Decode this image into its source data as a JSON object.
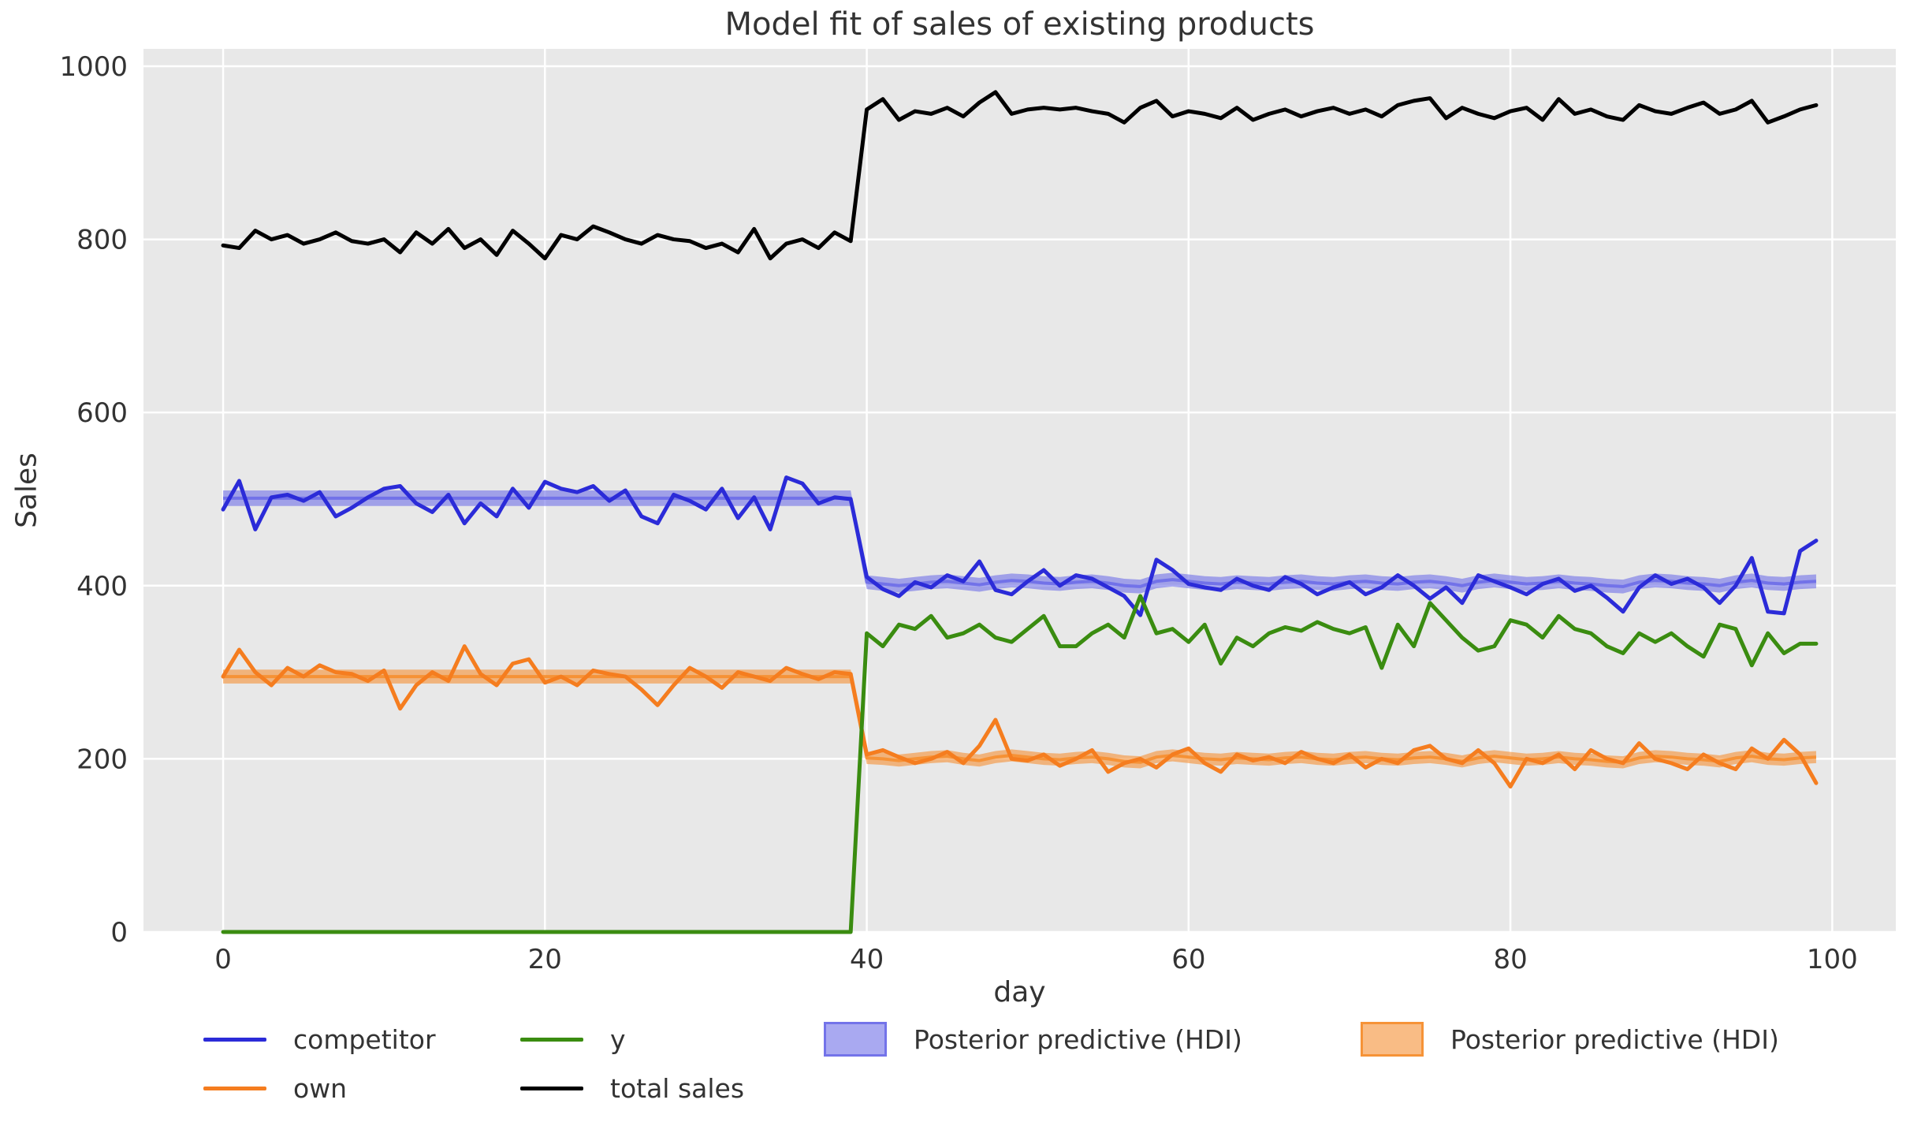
{
  "title": "Model fit of sales of existing products",
  "colors": {
    "figure_bg": "#ffffff",
    "plot_bg": "#e8e8e8",
    "grid": "#ffffff",
    "text": "#333333",
    "competitor": "#2b2bd8",
    "own": "#f57d1f",
    "y": "#3a8c10",
    "total_sales": "#000000",
    "hdi_blue": "#7070e8",
    "hdi_orange": "#f59033"
  },
  "legend": {
    "entries": [
      {
        "label": "competitor",
        "type": "line"
      },
      {
        "label": "own",
        "type": "line"
      },
      {
        "label": "y",
        "type": "line"
      },
      {
        "label": "total sales",
        "type": "line"
      },
      {
        "label": "Posterior predictive (HDI)",
        "type": "patch"
      },
      {
        "label": "Posterior predictive (HDI)",
        "type": "patch"
      }
    ]
  },
  "chart_data": {
    "type": "line",
    "title": "Model fit of sales of existing products",
    "xlabel": "day",
    "ylabel": "Sales",
    "xlim": [
      -4.95,
      103.95
    ],
    "ylim": [
      0,
      1020
    ],
    "x_ticks": [
      0,
      20,
      40,
      60,
      80,
      100
    ],
    "y_ticks": [
      0,
      200,
      400,
      600,
      800,
      1000
    ],
    "grid": true,
    "legend_position": "bottom",
    "x": [
      0,
      1,
      2,
      3,
      4,
      5,
      6,
      7,
      8,
      9,
      10,
      11,
      12,
      13,
      14,
      15,
      16,
      17,
      18,
      19,
      20,
      21,
      22,
      23,
      24,
      25,
      26,
      27,
      28,
      29,
      30,
      31,
      32,
      33,
      34,
      35,
      36,
      37,
      38,
      39,
      40,
      41,
      42,
      43,
      44,
      45,
      46,
      47,
      48,
      49,
      50,
      51,
      52,
      53,
      54,
      55,
      56,
      57,
      58,
      59,
      60,
      61,
      62,
      63,
      64,
      65,
      66,
      67,
      68,
      69,
      70,
      71,
      72,
      73,
      74,
      75,
      76,
      77,
      78,
      79,
      80,
      81,
      82,
      83,
      84,
      85,
      86,
      87,
      88,
      89,
      90,
      91,
      92,
      93,
      94,
      95,
      96,
      97,
      98,
      99
    ],
    "series": [
      {
        "name": "competitor",
        "color": "#2b2bd8",
        "values": [
          488,
          521,
          465,
          502,
          505,
          498,
          508,
          480,
          490,
          502,
          512,
          515,
          495,
          485,
          505,
          472,
          495,
          480,
          512,
          490,
          520,
          512,
          508,
          515,
          498,
          510,
          480,
          472,
          505,
          498,
          488,
          512,
          478,
          502,
          465,
          525,
          518,
          495,
          502,
          500,
          410,
          396,
          388,
          404,
          398,
          412,
          405,
          428,
          395,
          390,
          405,
          418,
          400,
          412,
          408,
          398,
          388,
          366,
          430,
          418,
          402,
          398,
          395,
          408,
          400,
          395,
          410,
          402,
          390,
          398,
          404,
          390,
          398,
          412,
          400,
          385,
          398,
          380,
          412,
          405,
          398,
          390,
          402,
          408,
          394,
          400,
          386,
          370,
          398,
          412,
          402,
          408,
          398,
          380,
          400,
          432,
          370,
          368,
          440,
          452
        ]
      },
      {
        "name": "own",
        "color": "#f57d1f",
        "values": [
          295,
          326,
          300,
          285,
          305,
          295,
          308,
          300,
          298,
          290,
          302,
          258,
          285,
          300,
          290,
          330,
          298,
          285,
          310,
          315,
          288,
          295,
          285,
          302,
          298,
          295,
          280,
          262,
          285,
          305,
          295,
          282,
          300,
          295,
          290,
          305,
          298,
          292,
          300,
          298,
          205,
          210,
          202,
          195,
          200,
          208,
          195,
          215,
          245,
          200,
          198,
          205,
          192,
          200,
          210,
          185,
          195,
          200,
          190,
          205,
          212,
          195,
          185,
          205,
          198,
          202,
          195,
          208,
          200,
          195,
          205,
          190,
          200,
          195,
          210,
          215,
          200,
          195,
          210,
          195,
          168,
          200,
          195,
          205,
          188,
          210,
          200,
          195,
          218,
          200,
          195,
          188,
          205,
          195,
          188,
          212,
          200,
          222,
          205,
          172
        ]
      },
      {
        "name": "y",
        "color": "#3a8c10",
        "values": [
          0,
          0,
          0,
          0,
          0,
          0,
          0,
          0,
          0,
          0,
          0,
          0,
          0,
          0,
          0,
          0,
          0,
          0,
          0,
          0,
          0,
          0,
          0,
          0,
          0,
          0,
          0,
          0,
          0,
          0,
          0,
          0,
          0,
          0,
          0,
          0,
          0,
          0,
          0,
          0,
          345,
          330,
          355,
          350,
          365,
          340,
          345,
          355,
          340,
          335,
          350,
          365,
          330,
          330,
          345,
          355,
          340,
          388,
          345,
          350,
          335,
          355,
          310,
          340,
          330,
          345,
          352,
          348,
          358,
          350,
          345,
          352,
          305,
          355,
          330,
          380,
          360,
          340,
          325,
          330,
          360,
          355,
          340,
          365,
          350,
          345,
          330,
          322,
          345,
          335,
          345,
          330,
          318,
          355,
          350,
          308,
          345,
          322,
          333,
          333
        ]
      },
      {
        "name": "total sales",
        "color": "#000000",
        "values": [
          793,
          790,
          810,
          800,
          805,
          795,
          800,
          808,
          798,
          795,
          800,
          785,
          808,
          795,
          812,
          790,
          800,
          782,
          810,
          795,
          778,
          805,
          800,
          815,
          808,
          800,
          795,
          805,
          800,
          798,
          790,
          795,
          785,
          812,
          778,
          795,
          800,
          790,
          808,
          798,
          950,
          962,
          938,
          948,
          945,
          952,
          942,
          958,
          970,
          945,
          950,
          952,
          950,
          952,
          948,
          945,
          935,
          952,
          960,
          942,
          948,
          945,
          940,
          952,
          938,
          945,
          950,
          942,
          948,
          952,
          945,
          950,
          942,
          955,
          960,
          963,
          940,
          952,
          945,
          940,
          948,
          952,
          938,
          962,
          945,
          950,
          942,
          938,
          955,
          948,
          945,
          952,
          958,
          945,
          950,
          960,
          935,
          942,
          950,
          955
        ]
      }
    ],
    "bands": [
      {
        "name": "Posterior predictive (HDI)",
        "color": "#7070e8",
        "lower": [
          492,
          492,
          492,
          492,
          492,
          492,
          492,
          492,
          492,
          492,
          492,
          492,
          492,
          492,
          492,
          492,
          492,
          492,
          492,
          492,
          492,
          492,
          492,
          492,
          492,
          492,
          492,
          492,
          492,
          492,
          492,
          492,
          492,
          492,
          492,
          492,
          492,
          492,
          492,
          492,
          396,
          394,
          392,
          394,
          396,
          397,
          395,
          393,
          396,
          398,
          397,
          395,
          394,
          396,
          397,
          395,
          392,
          391,
          397,
          399,
          397,
          395,
          394,
          396,
          395,
          394,
          396,
          397,
          395,
          394,
          396,
          397,
          395,
          394,
          396,
          397,
          395,
          392,
          396,
          398,
          396,
          394,
          395,
          397,
          395,
          394,
          392,
          391,
          396,
          398,
          397,
          395,
          394,
          392,
          396,
          398,
          395,
          394,
          396,
          397
        ],
        "upper": [
          510,
          510,
          510,
          510,
          510,
          510,
          510,
          510,
          510,
          510,
          510,
          510,
          510,
          510,
          510,
          510,
          510,
          510,
          510,
          510,
          510,
          510,
          510,
          510,
          510,
          510,
          510,
          510,
          510,
          510,
          510,
          510,
          510,
          510,
          510,
          510,
          510,
          510,
          510,
          510,
          412,
          410,
          408,
          410,
          412,
          413,
          411,
          409,
          412,
          414,
          413,
          411,
          410,
          412,
          413,
          411,
          408,
          407,
          413,
          415,
          413,
          411,
          410,
          412,
          411,
          410,
          412,
          413,
          411,
          410,
          412,
          413,
          411,
          410,
          412,
          413,
          411,
          408,
          412,
          414,
          412,
          410,
          411,
          413,
          411,
          410,
          408,
          407,
          412,
          414,
          413,
          411,
          410,
          408,
          412,
          414,
          411,
          410,
          412,
          413
        ],
        "mean": [
          501,
          501,
          501,
          501,
          501,
          501,
          501,
          501,
          501,
          501,
          501,
          501,
          501,
          501,
          501,
          501,
          501,
          501,
          501,
          501,
          501,
          501,
          501,
          501,
          501,
          501,
          501,
          501,
          501,
          501,
          501,
          501,
          501,
          501,
          501,
          501,
          501,
          501,
          501,
          501,
          404,
          402,
          400,
          402,
          404,
          405,
          403,
          401,
          404,
          406,
          405,
          403,
          402,
          404,
          405,
          403,
          400,
          399,
          405,
          407,
          405,
          403,
          402,
          404,
          403,
          402,
          404,
          405,
          403,
          402,
          404,
          405,
          403,
          402,
          404,
          405,
          403,
          400,
          404,
          406,
          404,
          402,
          403,
          405,
          403,
          402,
          400,
          399,
          404,
          406,
          405,
          403,
          402,
          400,
          404,
          406,
          403,
          402,
          404,
          405
        ]
      },
      {
        "name": "Posterior predictive (HDI)",
        "color": "#f59033",
        "lower": [
          287,
          287,
          287,
          287,
          287,
          287,
          287,
          287,
          287,
          287,
          287,
          287,
          287,
          287,
          287,
          287,
          287,
          287,
          287,
          287,
          287,
          287,
          287,
          287,
          287,
          287,
          287,
          287,
          287,
          287,
          287,
          287,
          287,
          287,
          287,
          287,
          287,
          287,
          287,
          287,
          194,
          193,
          191,
          193,
          195,
          196,
          193,
          191,
          195,
          197,
          195,
          193,
          192,
          194,
          195,
          193,
          190,
          189,
          195,
          197,
          195,
          193,
          192,
          194,
          193,
          192,
          194,
          195,
          193,
          192,
          194,
          195,
          193,
          192,
          194,
          195,
          193,
          190,
          194,
          196,
          194,
          192,
          193,
          195,
          193,
          192,
          190,
          189,
          194,
          196,
          195,
          193,
          192,
          190,
          194,
          196,
          193,
          192,
          194,
          195
        ],
        "upper": [
          303,
          303,
          303,
          303,
          303,
          303,
          303,
          303,
          303,
          303,
          303,
          303,
          303,
          303,
          303,
          303,
          303,
          303,
          303,
          303,
          303,
          303,
          303,
          303,
          303,
          303,
          303,
          303,
          303,
          303,
          303,
          303,
          303,
          303,
          303,
          303,
          303,
          303,
          303,
          303,
          208,
          207,
          205,
          207,
          209,
          210,
          207,
          205,
          209,
          211,
          209,
          207,
          206,
          208,
          209,
          207,
          204,
          203,
          209,
          211,
          209,
          207,
          206,
          208,
          207,
          206,
          208,
          209,
          207,
          206,
          208,
          209,
          207,
          206,
          208,
          209,
          207,
          204,
          208,
          210,
          208,
          206,
          207,
          209,
          207,
          206,
          204,
          203,
          208,
          210,
          209,
          207,
          206,
          204,
          208,
          210,
          207,
          206,
          208,
          209
        ],
        "mean": [
          295,
          295,
          295,
          295,
          295,
          295,
          295,
          295,
          295,
          295,
          295,
          295,
          295,
          295,
          295,
          295,
          295,
          295,
          295,
          295,
          295,
          295,
          295,
          295,
          295,
          295,
          295,
          295,
          295,
          295,
          295,
          295,
          295,
          295,
          295,
          295,
          295,
          295,
          295,
          295,
          201,
          200,
          198,
          200,
          202,
          203,
          200,
          198,
          202,
          204,
          202,
          200,
          199,
          201,
          202,
          200,
          197,
          196,
          202,
          204,
          202,
          200,
          199,
          201,
          200,
          199,
          201,
          202,
          200,
          199,
          201,
          202,
          200,
          199,
          201,
          202,
          200,
          197,
          201,
          203,
          201,
          199,
          200,
          202,
          200,
          199,
          197,
          196,
          201,
          203,
          202,
          200,
          199,
          197,
          201,
          203,
          200,
          199,
          201,
          202
        ]
      }
    ]
  }
}
